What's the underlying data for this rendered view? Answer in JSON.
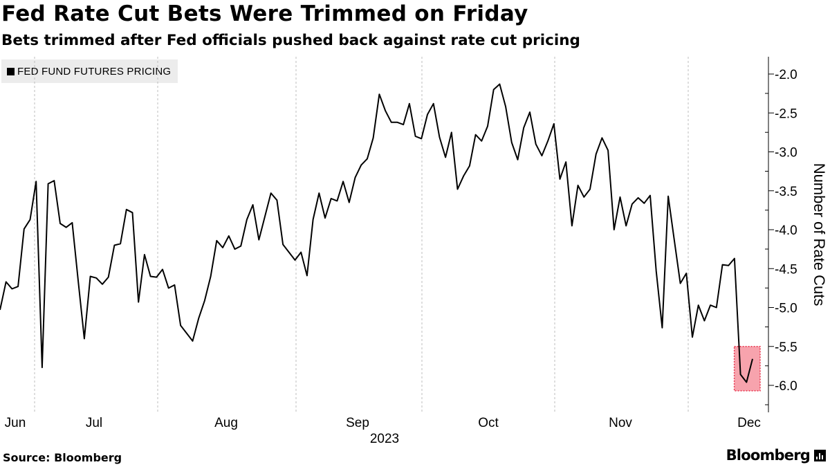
{
  "title": "Fed Rate Cut Bets Were Trimmed on Friday",
  "subtitle": "Bets trimmed after Fed officials pushed back against rate cut pricing",
  "legend": {
    "label": "FED FUND FUTURES PRICING"
  },
  "source": "Source: Bloomberg",
  "brand": "Bloomberg",
  "colors": {
    "line": "#000000",
    "highlight_fill": "#f7a3ad",
    "highlight_border": "#e8364f",
    "gridline": "#bdbdbd"
  },
  "chart_data": {
    "type": "line",
    "xlabel": "2023",
    "ylabel": "Number of Rate Cuts",
    "ylim": [
      -6.35,
      -1.8
    ],
    "y_ticks": [
      "-2.0",
      "-2.5",
      "-3.0",
      "-3.5",
      "-4.0",
      "-4.5",
      "-5.0",
      "-5.5",
      "-6.0"
    ],
    "x_ticks": [
      "Jun",
      "Jul",
      "Aug",
      "Sep",
      "Oct",
      "Nov",
      "Dec"
    ],
    "grid": "vertical dashed separators between months",
    "axis_position": "right",
    "series": [
      {
        "values": [
          -5.03,
          -4.67,
          -4.76,
          -4.73,
          -3.99,
          -3.87,
          -3.38,
          -5.77,
          -3.41,
          -3.37,
          -3.92,
          -3.97,
          -3.91,
          -4.67,
          -5.4,
          -4.6,
          -4.62,
          -4.7,
          -4.61,
          -4.2,
          -4.18,
          -3.74,
          -3.78,
          -4.93,
          -4.32,
          -4.6,
          -4.61,
          -4.51,
          -4.75,
          -4.71,
          -5.23,
          -5.33,
          -5.43,
          -5.14,
          -4.91,
          -4.6,
          -4.14,
          -4.23,
          -4.08,
          -4.25,
          -4.21,
          -3.87,
          -3.68,
          -4.13,
          -3.83,
          -3.53,
          -3.62,
          -4.19,
          -4.29,
          -4.39,
          -4.29,
          -4.59,
          -3.87,
          -3.53,
          -3.85,
          -3.6,
          -3.63,
          -3.38,
          -3.65,
          -3.33,
          -3.17,
          -3.09,
          -2.82,
          -2.26,
          -2.47,
          -2.62,
          -2.62,
          -2.65,
          -2.38,
          -2.8,
          -2.83,
          -2.52,
          -2.38,
          -2.81,
          -3.07,
          -2.75,
          -3.48,
          -3.31,
          -3.18,
          -2.78,
          -2.86,
          -2.67,
          -2.2,
          -2.13,
          -2.42,
          -2.88,
          -3.1,
          -2.69,
          -2.49,
          -2.9,
          -3.05,
          -2.86,
          -2.64,
          -3.35,
          -3.13,
          -3.95,
          -3.43,
          -3.58,
          -3.48,
          -3.03,
          -2.82,
          -2.98,
          -4.0,
          -3.58,
          -3.95,
          -3.67,
          -3.59,
          -3.66,
          -3.56,
          -4.53,
          -5.26,
          -3.57,
          -4.13,
          -4.69,
          -4.56,
          -5.38,
          -4.97,
          -5.17,
          -4.97,
          -5.0,
          -4.45,
          -4.46,
          -4.37,
          -5.86,
          -5.96,
          -5.66
        ]
      }
    ],
    "highlight": {
      "from_index": 123,
      "to_index": 125,
      "ymin": -6.07,
      "ymax": -5.5
    }
  }
}
